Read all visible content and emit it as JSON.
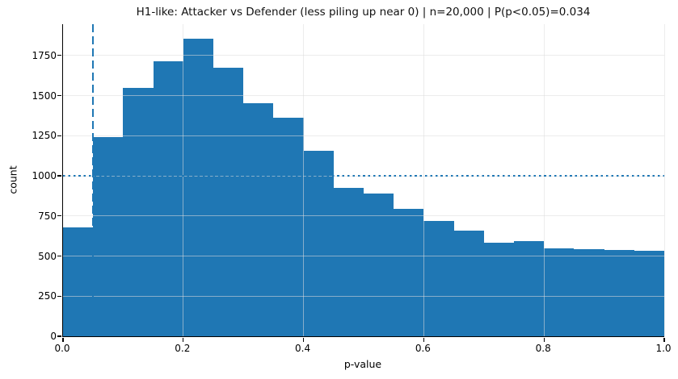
{
  "chart_data": {
    "type": "bar",
    "chart_kind": "histogram",
    "title": "H1-like: Attacker vs Defender (less piling up near 0) | n=20,000 | P(p<0.05)=0.034",
    "xlabel": "p-value",
    "ylabel": "count",
    "n_total": "20,000",
    "p_below_threshold": "0.034",
    "bin_edges": [
      0.0,
      0.05,
      0.1,
      0.15,
      0.2,
      0.25,
      0.3,
      0.35,
      0.4,
      0.45,
      0.5,
      0.55,
      0.6,
      0.65,
      0.7,
      0.75,
      0.8,
      0.85,
      0.9,
      0.95,
      1.0
    ],
    "values": [
      680,
      1240,
      1550,
      1712,
      1853,
      1675,
      1450,
      1362,
      1158,
      924,
      890,
      795,
      720,
      658,
      582,
      591,
      546,
      545,
      538,
      531
    ],
    "xlim": [
      0.0,
      1.0
    ],
    "ylim": [
      0,
      1945
    ],
    "xticks": [
      0.0,
      0.2,
      0.4,
      0.6,
      0.8,
      1.0
    ],
    "xtick_labels": [
      "0.0",
      "0.2",
      "0.4",
      "0.6",
      "0.8",
      "1.0"
    ],
    "yticks": [
      0,
      250,
      500,
      750,
      1000,
      1250,
      1500,
      1750
    ],
    "ytick_labels": [
      "0",
      "250",
      "500",
      "750",
      "1000",
      "1250",
      "1500",
      "1750"
    ],
    "grid": true,
    "legend": false,
    "bar_color": "#1f77b4",
    "grid_over_bars": true,
    "annotations": {
      "vline": {
        "x": 0.05,
        "style": "dashed",
        "color": "#1f77b4"
      },
      "hline": {
        "y": 1000,
        "style": "dotted",
        "color": "#1f77b4"
      }
    }
  }
}
